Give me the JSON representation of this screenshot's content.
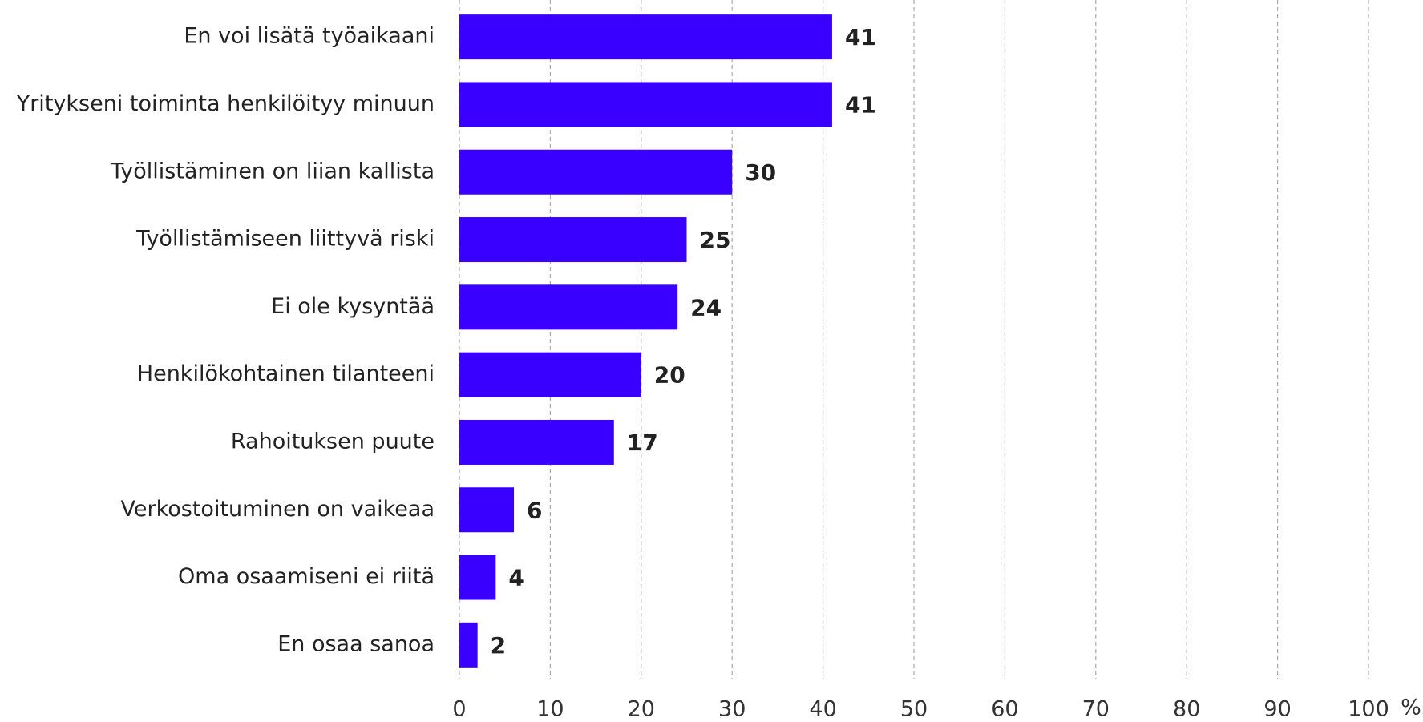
{
  "chart_data": {
    "type": "bar",
    "orientation": "horizontal",
    "categories": [
      "En voi lisätä työaikaani",
      "Yritykseni toiminta henkilöityy minuun",
      "Työllistäminen on liian kallista",
      "Työllistämiseen liittyvä riski",
      "Ei ole kysyntää",
      "Henkilökohtainen tilanteeni",
      "Rahoituksen puute",
      "Verkostoituminen on vaikeaa",
      "Oma osaamiseni ei riitä",
      "En osaa sanoa"
    ],
    "values": [
      41,
      41,
      30,
      25,
      24,
      20,
      17,
      6,
      4,
      2
    ],
    "color": "#3a00ff",
    "xlabel": "%",
    "xlim": [
      0,
      100
    ],
    "xticks": [
      0,
      10,
      20,
      30,
      40,
      50,
      60,
      70,
      80,
      90,
      100
    ],
    "grid": true
  }
}
